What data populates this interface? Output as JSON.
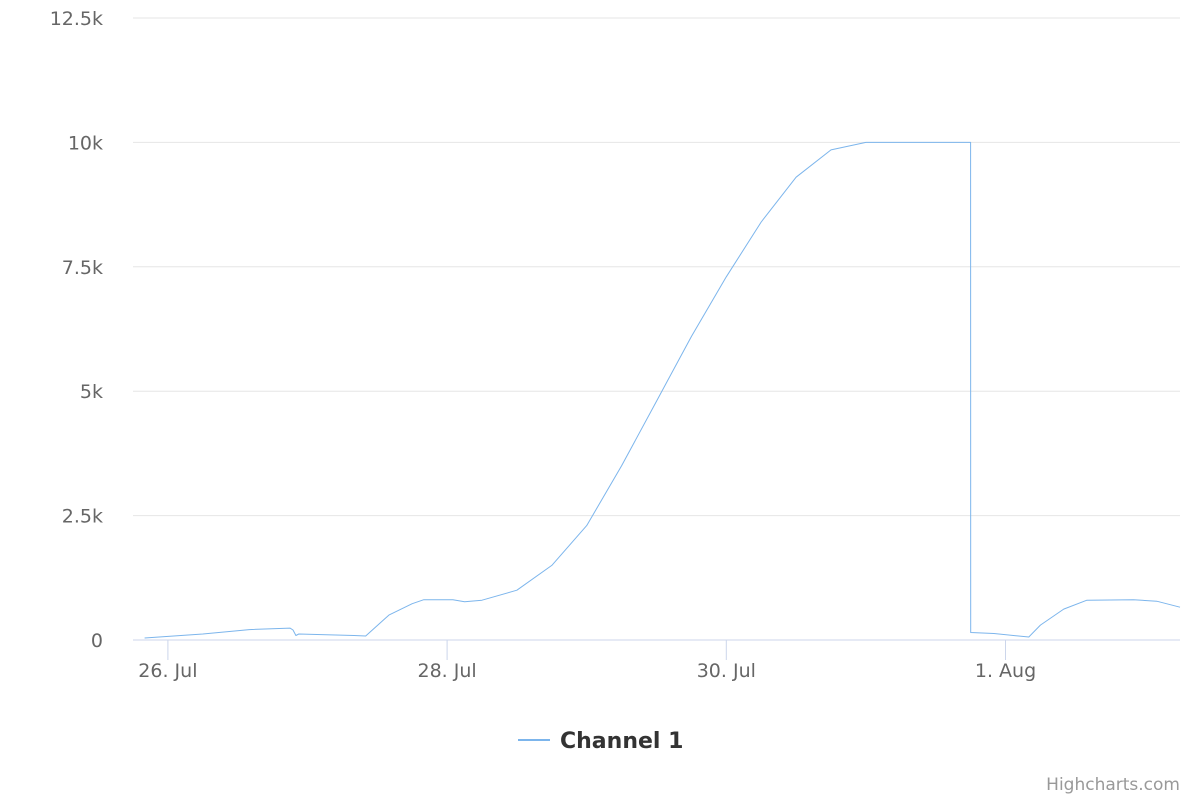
{
  "chart_data": {
    "type": "line",
    "title": "",
    "xlabel": "",
    "ylabel": "",
    "x_type": "datetime",
    "ylim": [
      0,
      12500
    ],
    "xlim": [
      "2023-07-25T18:00",
      "2023-08-02T06:00"
    ],
    "y_ticks": [
      0,
      2500,
      5000,
      7500,
      10000,
      12500
    ],
    "y_tick_labels": [
      "0",
      "2.5k",
      "5k",
      "7.5k",
      "10k",
      "12.5k"
    ],
    "x_ticks": [
      "2023-07-26T00:00",
      "2023-07-28T00:00",
      "2023-07-30T00:00",
      "2023-08-01T00:00"
    ],
    "x_tick_labels": [
      "26. Jul",
      "28. Jul",
      "30. Jul",
      "1. Aug"
    ],
    "grid": true,
    "legend": "bottom-center",
    "series": [
      {
        "name": "Channel 1",
        "color": "#7cb5ec",
        "points": [
          [
            "2023-07-25T20:00",
            40
          ],
          [
            "2023-07-26T06:00",
            120
          ],
          [
            "2023-07-26T14:00",
            210
          ],
          [
            "2023-07-26T21:00",
            240
          ],
          [
            "2023-07-26T21:30",
            200
          ],
          [
            "2023-07-26T22:00",
            90
          ],
          [
            "2023-07-26T22:30",
            120
          ],
          [
            "2023-07-27T08:00",
            90
          ],
          [
            "2023-07-27T10:00",
            80
          ],
          [
            "2023-07-27T14:00",
            500
          ],
          [
            "2023-07-27T18:00",
            730
          ],
          [
            "2023-07-27T20:00",
            810
          ],
          [
            "2023-07-28T01:00",
            810
          ],
          [
            "2023-07-28T03:00",
            770
          ],
          [
            "2023-07-28T06:00",
            800
          ],
          [
            "2023-07-28T12:00",
            1000
          ],
          [
            "2023-07-28T18:00",
            1500
          ],
          [
            "2023-07-29T00:00",
            2300
          ],
          [
            "2023-07-29T06:00",
            3500
          ],
          [
            "2023-07-29T12:00",
            4800
          ],
          [
            "2023-07-29T18:00",
            6100
          ],
          [
            "2023-07-30T00:00",
            7300
          ],
          [
            "2023-07-30T06:00",
            8400
          ],
          [
            "2023-07-30T12:00",
            9300
          ],
          [
            "2023-07-30T18:00",
            9850
          ],
          [
            "2023-07-31T00:00",
            10000
          ],
          [
            "2023-07-31T04:00",
            10000
          ],
          [
            "2023-07-31T18:00",
            10000
          ],
          [
            "2023-07-31T18:01",
            150
          ],
          [
            "2023-07-31T22:00",
            130
          ],
          [
            "2023-08-01T04:00",
            60
          ],
          [
            "2023-08-01T06:00",
            300
          ],
          [
            "2023-08-01T10:00",
            620
          ],
          [
            "2023-08-01T14:00",
            800
          ],
          [
            "2023-08-01T22:00",
            810
          ],
          [
            "2023-08-02T02:00",
            780
          ],
          [
            "2023-08-02T06:00",
            660
          ]
        ]
      }
    ]
  },
  "credits": "Highcharts.com"
}
